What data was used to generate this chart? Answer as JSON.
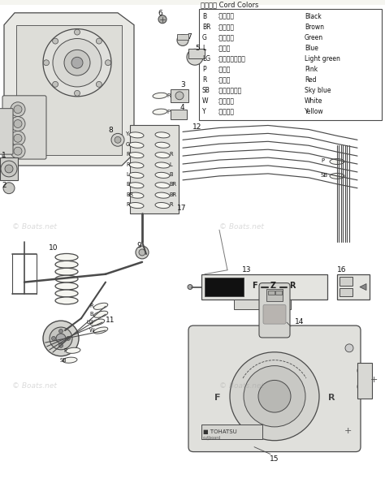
{
  "bg_color": "#f5f5f0",
  "dc": "#4a4a4a",
  "lc": "#5a5a5a",
  "legend_title": "コード色 Cord Colors",
  "legend_items": [
    [
      "B",
      ":ブラック",
      "Black"
    ],
    [
      "BR",
      ":ブラウン",
      "Brown"
    ],
    [
      "G",
      ":グリーン",
      "Green"
    ],
    [
      "L",
      ":ブルー",
      "Blue"
    ],
    [
      "LG",
      ":ライトグリーン",
      "Light green"
    ],
    [
      "P",
      ":ピンク",
      "Pink"
    ],
    [
      "R",
      ":レッド",
      "Red"
    ],
    [
      "SB",
      ":スカイブルー",
      "Sky blue"
    ],
    [
      "W",
      ":ホワイト",
      "White"
    ],
    [
      "Y",
      ":イエロー",
      "Yellow"
    ]
  ],
  "watermark": "© Boats.net"
}
